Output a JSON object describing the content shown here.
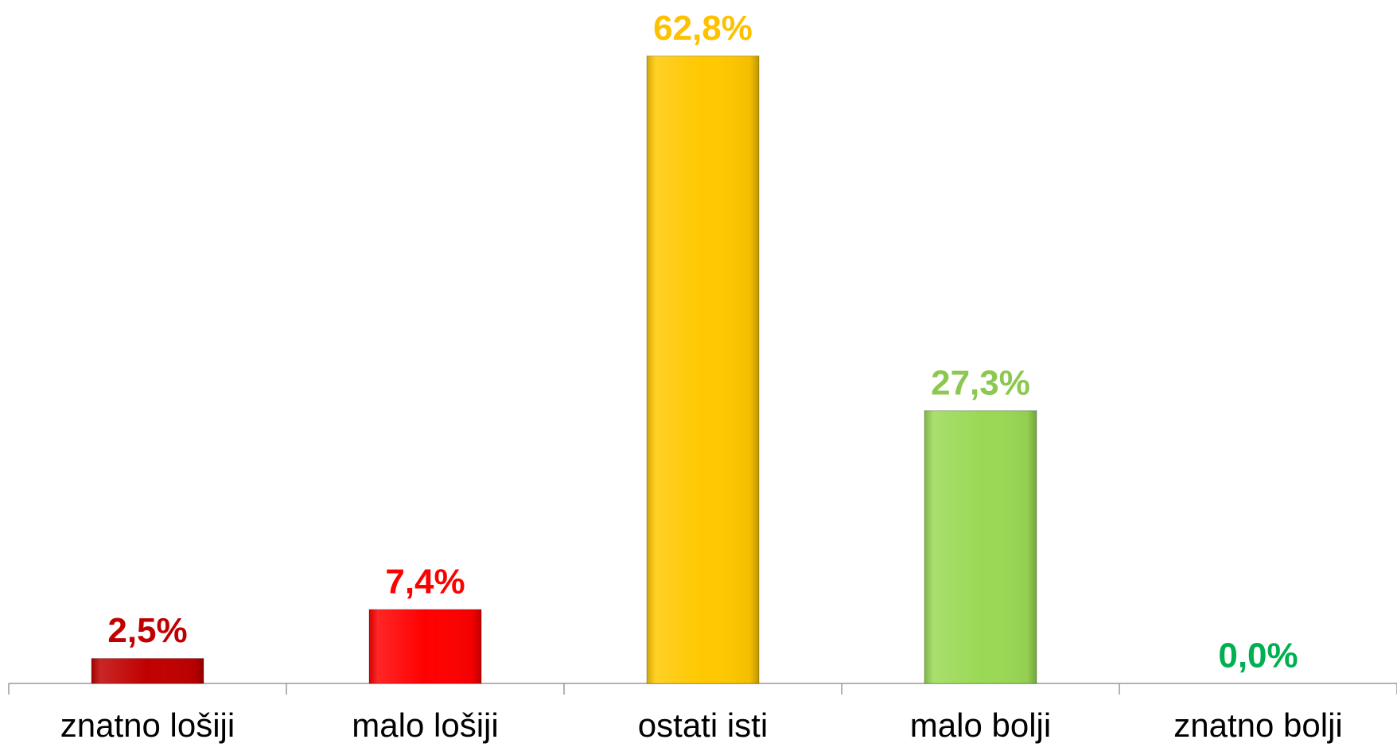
{
  "chart_data": {
    "type": "bar",
    "categories": [
      "znatno lošiji",
      "malo lošiji",
      "ostati isti",
      "malo bolji",
      "znatno bolji"
    ],
    "values": [
      2.5,
      7.4,
      62.8,
      27.3,
      0.0
    ],
    "value_labels": [
      "2,5%",
      "7,4%",
      "62,8%",
      "27,3%",
      "0,0%"
    ],
    "colors": [
      "#c00000",
      "#ff0000",
      "#ffc800",
      "#9ad955",
      "#00b050"
    ],
    "label_colors": [
      "#c00000",
      "#ff0000",
      "#ffc000",
      "#8cc850",
      "#00b050"
    ],
    "ylim": [
      0,
      68.4
    ]
  }
}
